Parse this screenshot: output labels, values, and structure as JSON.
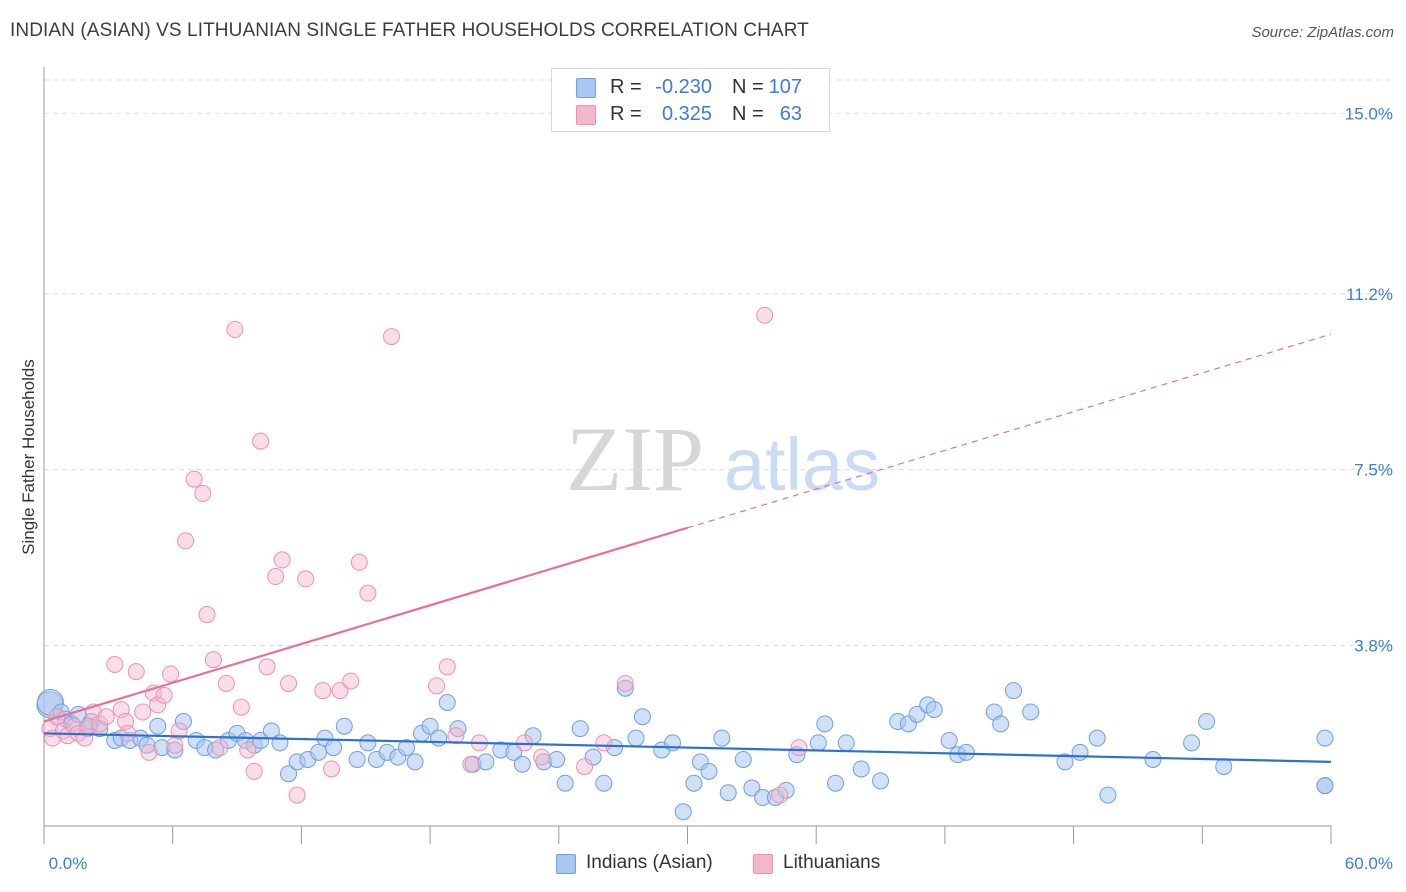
{
  "title": "INDIAN (ASIAN) VS LITHUANIAN SINGLE FATHER HOUSEHOLDS CORRELATION CHART",
  "source": "Source: ZipAtlas.com",
  "watermark": {
    "zip": "ZIP",
    "atlas": "atlas"
  },
  "legend": {
    "rows": [
      {
        "r_label": "R =",
        "r_value": "-0.230",
        "n_label": "N =",
        "n_value": "107",
        "color": "#a9c6ef"
      },
      {
        "r_label": "R =",
        "r_value": "0.325",
        "n_label": "N =",
        "n_value": "63",
        "color": "#f4b6c9"
      }
    ]
  },
  "bottom_legend": [
    {
      "label": "Indians (Asian)",
      "color": "#a9c6ef"
    },
    {
      "label": "Lithuanians",
      "color": "#f4b6c9"
    }
  ],
  "chart_data": {
    "type": "scatter",
    "title": "INDIAN (ASIAN) VS LITHUANIAN SINGLE FATHER HOUSEHOLDS CORRELATION CHART",
    "xlabel": "",
    "ylabel": "Single Father Households",
    "xlim": [
      0,
      60
    ],
    "ylim": [
      0,
      15.7
    ],
    "x_tick_labels": [
      "0.0%",
      "60.0%"
    ],
    "y_ticks": [
      3.8,
      7.5,
      11.2,
      15.0
    ],
    "y_tick_labels": [
      "3.8%",
      "7.5%",
      "11.2%",
      "15.0%"
    ],
    "grid": "horizontal dashed",
    "legend_position": "top-center",
    "series": [
      {
        "name": "Indians (Asian)",
        "color": "#6f9fe0",
        "line_color": "#2b72d0",
        "trend": {
          "x0": 0,
          "y0": 1.95,
          "x1": 60,
          "y1": 1.35,
          "solid_to": 60
        },
        "points": [
          [
            0.2,
            2.55
          ],
          [
            0.3,
            2.6
          ],
          [
            0.8,
            2.4
          ],
          [
            1.0,
            2.25
          ],
          [
            1.3,
            2.15
          ],
          [
            1.6,
            2.35
          ],
          [
            2.0,
            2.05
          ],
          [
            2.2,
            2.2
          ],
          [
            2.6,
            2.05
          ],
          [
            3.3,
            1.8
          ],
          [
            3.6,
            1.85
          ],
          [
            4.0,
            1.8
          ],
          [
            4.5,
            1.85
          ],
          [
            4.8,
            1.7
          ],
          [
            5.3,
            2.1
          ],
          [
            5.5,
            1.65
          ],
          [
            6.1,
            1.6
          ],
          [
            6.5,
            2.2
          ],
          [
            7.1,
            1.8
          ],
          [
            7.5,
            1.65
          ],
          [
            8.0,
            1.6
          ],
          [
            8.6,
            1.8
          ],
          [
            9.0,
            1.95
          ],
          [
            9.4,
            1.8
          ],
          [
            9.8,
            1.7
          ],
          [
            10.1,
            1.8
          ],
          [
            10.6,
            2.0
          ],
          [
            11.0,
            1.75
          ],
          [
            11.4,
            1.1
          ],
          [
            11.8,
            1.35
          ],
          [
            12.3,
            1.4
          ],
          [
            12.8,
            1.55
          ],
          [
            13.1,
            1.85
          ],
          [
            13.5,
            1.65
          ],
          [
            14.0,
            2.1
          ],
          [
            14.6,
            1.4
          ],
          [
            15.1,
            1.75
          ],
          [
            15.5,
            1.4
          ],
          [
            16.0,
            1.55
          ],
          [
            16.5,
            1.45
          ],
          [
            16.9,
            1.65
          ],
          [
            17.3,
            1.35
          ],
          [
            17.6,
            1.95
          ],
          [
            18.0,
            2.1
          ],
          [
            18.4,
            1.85
          ],
          [
            18.8,
            2.6
          ],
          [
            19.3,
            2.05
          ],
          [
            20.0,
            1.3
          ],
          [
            20.6,
            1.35
          ],
          [
            21.3,
            1.6
          ],
          [
            21.9,
            1.55
          ],
          [
            22.3,
            1.3
          ],
          [
            22.8,
            1.9
          ],
          [
            23.3,
            1.35
          ],
          [
            23.9,
            1.4
          ],
          [
            24.3,
            0.9
          ],
          [
            25.0,
            2.05
          ],
          [
            25.6,
            1.45
          ],
          [
            26.1,
            0.9
          ],
          [
            26.6,
            1.65
          ],
          [
            27.1,
            2.9
          ],
          [
            27.6,
            1.85
          ],
          [
            27.9,
            2.3
          ],
          [
            28.8,
            1.6
          ],
          [
            29.3,
            1.75
          ],
          [
            29.8,
            0.3
          ],
          [
            30.3,
            0.9
          ],
          [
            30.6,
            1.35
          ],
          [
            31.0,
            1.15
          ],
          [
            31.6,
            1.85
          ],
          [
            31.9,
            0.7
          ],
          [
            32.6,
            1.4
          ],
          [
            33.0,
            0.8
          ],
          [
            33.5,
            0.6
          ],
          [
            34.1,
            0.6
          ],
          [
            34.6,
            0.75
          ],
          [
            35.1,
            1.5
          ],
          [
            36.1,
            1.75
          ],
          [
            36.4,
            2.15
          ],
          [
            36.9,
            0.9
          ],
          [
            37.4,
            1.75
          ],
          [
            38.1,
            1.2
          ],
          [
            39.0,
            0.95
          ],
          [
            39.8,
            2.2
          ],
          [
            40.3,
            2.15
          ],
          [
            40.7,
            2.35
          ],
          [
            41.2,
            2.55
          ],
          [
            41.5,
            2.45
          ],
          [
            42.2,
            1.8
          ],
          [
            42.6,
            1.5
          ],
          [
            43.0,
            1.55
          ],
          [
            44.3,
            2.4
          ],
          [
            44.6,
            2.15
          ],
          [
            45.2,
            2.85
          ],
          [
            46.0,
            2.4
          ],
          [
            47.6,
            1.35
          ],
          [
            48.3,
            1.55
          ],
          [
            49.1,
            1.85
          ],
          [
            49.6,
            0.65
          ],
          [
            51.7,
            1.4
          ],
          [
            53.5,
            1.75
          ],
          [
            54.2,
            2.2
          ],
          [
            55.0,
            1.25
          ],
          [
            60.0,
            1.85
          ],
          [
            61.3,
            0.85
          ],
          [
            63.0,
            0.85
          ]
        ]
      },
      {
        "name": "Lithuanians",
        "color": "#f08fb0",
        "line_color": "#e5709a",
        "trend": {
          "x0": 0,
          "y0": 2.2,
          "x1": 60,
          "y1": 10.35,
          "solid_to": 30
        },
        "points": [
          [
            0.2,
            2.05
          ],
          [
            0.4,
            1.85
          ],
          [
            0.6,
            2.3
          ],
          [
            0.9,
            2.0
          ],
          [
            1.1,
            1.9
          ],
          [
            1.4,
            2.1
          ],
          [
            1.6,
            1.95
          ],
          [
            1.9,
            1.85
          ],
          [
            2.1,
            2.1
          ],
          [
            2.3,
            2.4
          ],
          [
            2.6,
            2.15
          ],
          [
            2.9,
            2.3
          ],
          [
            3.3,
            3.4
          ],
          [
            3.6,
            2.45
          ],
          [
            3.8,
            2.2
          ],
          [
            3.9,
            1.95
          ],
          [
            4.3,
            3.25
          ],
          [
            4.6,
            2.4
          ],
          [
            4.9,
            1.55
          ],
          [
            5.1,
            2.8
          ],
          [
            5.3,
            2.55
          ],
          [
            5.6,
            2.75
          ],
          [
            5.9,
            3.2
          ],
          [
            6.1,
            1.7
          ],
          [
            6.3,
            2.0
          ],
          [
            6.6,
            6.0
          ],
          [
            7.0,
            7.3
          ],
          [
            7.4,
            7.0
          ],
          [
            7.6,
            4.45
          ],
          [
            7.9,
            3.5
          ],
          [
            8.2,
            1.65
          ],
          [
            8.5,
            3.0
          ],
          [
            8.9,
            10.45
          ],
          [
            9.2,
            2.5
          ],
          [
            9.5,
            1.6
          ],
          [
            9.8,
            1.15
          ],
          [
            10.1,
            8.1
          ],
          [
            10.4,
            3.35
          ],
          [
            10.8,
            5.25
          ],
          [
            11.1,
            5.6
          ],
          [
            11.4,
            3.0
          ],
          [
            11.8,
            0.65
          ],
          [
            12.2,
            5.2
          ],
          [
            13.0,
            2.85
          ],
          [
            13.4,
            1.2
          ],
          [
            13.8,
            2.85
          ],
          [
            14.3,
            3.05
          ],
          [
            14.7,
            5.55
          ],
          [
            15.1,
            4.9
          ],
          [
            16.2,
            10.3
          ],
          [
            18.3,
            2.95
          ],
          [
            18.8,
            3.35
          ],
          [
            19.2,
            1.9
          ],
          [
            19.9,
            1.3
          ],
          [
            20.3,
            1.75
          ],
          [
            22.4,
            1.75
          ],
          [
            23.2,
            1.45
          ],
          [
            25.2,
            1.25
          ],
          [
            26.1,
            1.75
          ],
          [
            27.1,
            3.0
          ],
          [
            33.6,
            10.75
          ],
          [
            34.3,
            0.65
          ],
          [
            35.2,
            1.65
          ]
        ]
      }
    ]
  }
}
